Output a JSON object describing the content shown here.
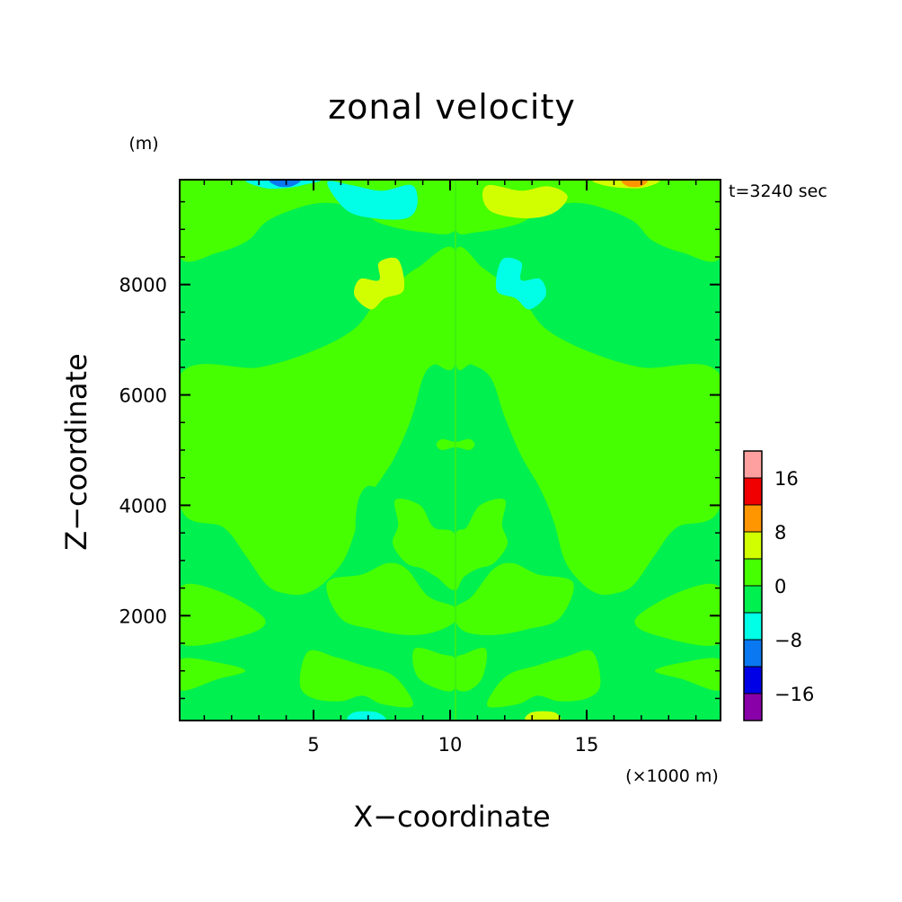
{
  "chart_data": {
    "type": "heatmap",
    "title": "zonal velocity",
    "xlabel": "X−coordinate",
    "ylabel": "Z−coordinate",
    "x_unit": "(×1000 m)",
    "y_unit": "(m)",
    "time_label": "t=3240 sec",
    "xlim": [
      0.1,
      19.9
    ],
    "ylim": [
      100,
      9900
    ],
    "x_ticks": [
      {
        "value": 5,
        "label": "5"
      },
      {
        "value": 10,
        "label": "10"
      },
      {
        "value": 15,
        "label": "15"
      }
    ],
    "y_ticks": [
      {
        "value": 2000,
        "label": "2000"
      },
      {
        "value": 4000,
        "label": "4000"
      },
      {
        "value": 6000,
        "label": "6000"
      },
      {
        "value": 8000,
        "label": "8000"
      }
    ],
    "colorbar": {
      "levels": [
        -20,
        -16,
        -12,
        -8,
        -4,
        0,
        4,
        8,
        12,
        16,
        20
      ],
      "colors": [
        "#8a00a8",
        "#0000e6",
        "#0a78f0",
        "#00ffe6",
        "#00f050",
        "#46ff00",
        "#d2ff00",
        "#ff9600",
        "#f00000",
        "#ffa0a0"
      ],
      "labels": [
        {
          "value": -16,
          "label": "−16"
        },
        {
          "value": -8,
          "label": "−8"
        },
        {
          "value": 0,
          "label": "0"
        },
        {
          "value": 8,
          "label": "8"
        },
        {
          "value": 16,
          "label": "16"
        }
      ]
    },
    "background_value": -2,
    "regions": [
      {
        "v": 2,
        "pts": [
          [
            0.1,
            8500
          ],
          [
            1.5,
            8580
          ],
          [
            2.6,
            8800
          ],
          [
            3.3,
            9150
          ],
          [
            4.5,
            9400
          ],
          [
            5.5,
            9480
          ],
          [
            6.5,
            9380
          ],
          [
            7.5,
            9100
          ],
          [
            9,
            8950
          ],
          [
            10.2,
            9000
          ],
          [
            10.2,
            9900
          ],
          [
            0.1,
            9900
          ]
        ]
      },
      {
        "v": 2,
        "pts": [
          [
            19.9,
            8500
          ],
          [
            18.5,
            8580
          ],
          [
            17.4,
            8800
          ],
          [
            16.7,
            9150
          ],
          [
            15.5,
            9400
          ],
          [
            14.5,
            9480
          ],
          [
            13.5,
            9380
          ],
          [
            12.5,
            9100
          ],
          [
            11,
            8950
          ],
          [
            10.2,
            9000
          ],
          [
            10.2,
            9900
          ],
          [
            19.9,
            9900
          ]
        ]
      },
      {
        "v": 2,
        "pts": [
          [
            0.1,
            6350
          ],
          [
            3,
            6500
          ],
          [
            5,
            6800
          ],
          [
            6.5,
            7200
          ],
          [
            7.3,
            7700
          ],
          [
            8,
            8000
          ],
          [
            8.8,
            8300
          ],
          [
            10.2,
            8600
          ],
          [
            10.2,
            6600
          ],
          [
            9.4,
            6550
          ],
          [
            9,
            6300
          ],
          [
            8.6,
            5600
          ],
          [
            8,
            4900
          ],
          [
            7.5,
            4500
          ],
          [
            6.8,
            4000
          ],
          [
            6.5,
            3500
          ],
          [
            6.1,
            3000
          ],
          [
            5.4,
            2600
          ],
          [
            4.7,
            2400
          ],
          [
            4,
            2400
          ],
          [
            3.3,
            2550
          ],
          [
            2.5,
            3100
          ],
          [
            1.7,
            3600
          ],
          [
            0.1,
            4000
          ]
        ]
      },
      {
        "v": 2,
        "pts": [
          [
            19.9,
            6350
          ],
          [
            17,
            6500
          ],
          [
            15,
            6800
          ],
          [
            13.5,
            7200
          ],
          [
            12.7,
            7700
          ],
          [
            12,
            8000
          ],
          [
            11.2,
            8300
          ],
          [
            10.2,
            8600
          ],
          [
            10.2,
            6600
          ],
          [
            10.8,
            6550
          ],
          [
            11.5,
            6300
          ],
          [
            12,
            5600
          ],
          [
            12.6,
            4900
          ],
          [
            13.3,
            4300
          ],
          [
            13.8,
            3700
          ],
          [
            14.2,
            3000
          ],
          [
            14.8,
            2600
          ],
          [
            15.4,
            2400
          ],
          [
            16,
            2400
          ],
          [
            16.7,
            2550
          ],
          [
            17.5,
            3100
          ],
          [
            18.3,
            3600
          ],
          [
            19.9,
            4000
          ]
        ]
      },
      {
        "v": -2,
        "pts": [
          [
            7,
            4350
          ],
          [
            7.7,
            4150
          ],
          [
            8,
            3700
          ],
          [
            8,
            3300
          ],
          [
            7.2,
            3100
          ],
          [
            6.6,
            3300
          ],
          [
            6.6,
            4000
          ]
        ]
      },
      {
        "v": -2,
        "pts": [
          [
            13,
            4350
          ],
          [
            12.3,
            4150
          ],
          [
            12,
            3700
          ],
          [
            12,
            3300
          ],
          [
            12.8,
            3100
          ],
          [
            13.4,
            3300
          ],
          [
            13.4,
            4000
          ]
        ]
      },
      {
        "v": 2,
        "pts": [
          [
            10.2,
            5150
          ],
          [
            10.7,
            5200
          ],
          [
            10.9,
            5100
          ],
          [
            10.7,
            5000
          ],
          [
            10.2,
            5050
          ],
          [
            9.7,
            5000
          ],
          [
            9.5,
            5100
          ],
          [
            9.7,
            5200
          ]
        ]
      },
      {
        "v": 2,
        "pts": [
          [
            8,
            4100
          ],
          [
            8.9,
            4000
          ],
          [
            9.4,
            3600
          ],
          [
            10.2,
            3450
          ],
          [
            10.2,
            2500
          ],
          [
            9.5,
            2700
          ],
          [
            9,
            2850
          ],
          [
            8.4,
            2950
          ],
          [
            7.9,
            3300
          ],
          [
            8.1,
            3650
          ]
        ]
      },
      {
        "v": 2,
        "pts": [
          [
            12,
            4100
          ],
          [
            11.1,
            4000
          ],
          [
            10.6,
            3600
          ],
          [
            10.2,
            3450
          ],
          [
            10.2,
            2500
          ],
          [
            10.5,
            2700
          ],
          [
            11,
            2850
          ],
          [
            11.6,
            2950
          ],
          [
            12.1,
            3300
          ],
          [
            11.9,
            3650
          ]
        ]
      },
      {
        "v": 2,
        "pts": [
          [
            5.5,
            2600
          ],
          [
            6.8,
            2750
          ],
          [
            7.7,
            2950
          ],
          [
            8.4,
            2850
          ],
          [
            9.2,
            2350
          ],
          [
            10.2,
            2150
          ],
          [
            10.2,
            1900
          ],
          [
            9.4,
            1700
          ],
          [
            8.4,
            1650
          ],
          [
            7.2,
            1750
          ],
          [
            6,
            1950
          ]
        ]
      },
      {
        "v": 2,
        "pts": [
          [
            14.5,
            2600
          ],
          [
            13.2,
            2750
          ],
          [
            12.3,
            2950
          ],
          [
            11.6,
            2850
          ],
          [
            10.8,
            2350
          ],
          [
            10.2,
            2150
          ],
          [
            10.2,
            1900
          ],
          [
            10.6,
            1700
          ],
          [
            11.6,
            1650
          ],
          [
            12.8,
            1750
          ],
          [
            14,
            1950
          ]
        ]
      },
      {
        "v": 2,
        "pts": [
          [
            0.1,
            2500
          ],
          [
            1.5,
            2450
          ],
          [
            3.2,
            1950
          ],
          [
            2.5,
            1650
          ],
          [
            0.1,
            1500
          ]
        ]
      },
      {
        "v": 2,
        "pts": [
          [
            19.9,
            2500
          ],
          [
            18.5,
            2450
          ],
          [
            16.8,
            1950
          ],
          [
            17.5,
            1650
          ],
          [
            19.9,
            1500
          ]
        ]
      },
      {
        "v": 2,
        "pts": [
          [
            0.1,
            1200
          ],
          [
            1.5,
            1150
          ],
          [
            2.5,
            1000
          ],
          [
            1.5,
            850
          ],
          [
            0.1,
            650
          ]
        ]
      },
      {
        "v": 2,
        "pts": [
          [
            19.9,
            1200
          ],
          [
            18.5,
            1150
          ],
          [
            17.5,
            1000
          ],
          [
            18.5,
            850
          ],
          [
            19.9,
            650
          ]
        ]
      },
      {
        "v": 2,
        "pts": [
          [
            4.8,
            1350
          ],
          [
            5.8,
            1250
          ],
          [
            6.8,
            1100
          ],
          [
            7.8,
            950
          ],
          [
            8.4,
            650
          ],
          [
            8.6,
            350
          ],
          [
            7.5,
            400
          ],
          [
            6.8,
            550
          ],
          [
            6,
            450
          ],
          [
            5,
            500
          ],
          [
            4.5,
            750
          ]
        ]
      },
      {
        "v": 2,
        "pts": [
          [
            15.2,
            1350
          ],
          [
            14.2,
            1250
          ],
          [
            13.2,
            1100
          ],
          [
            12.2,
            950
          ],
          [
            11.6,
            650
          ],
          [
            11.4,
            350
          ],
          [
            12.5,
            400
          ],
          [
            13.2,
            550
          ],
          [
            14,
            450
          ],
          [
            15,
            500
          ],
          [
            15.5,
            750
          ]
        ]
      },
      {
        "v": 2,
        "pts": [
          [
            8.7,
            1400
          ],
          [
            9.7,
            1300
          ],
          [
            10.2,
            1200
          ],
          [
            10.2,
            700
          ],
          [
            9.7,
            650
          ],
          [
            8.8,
            900
          ]
        ]
      },
      {
        "v": 2,
        "pts": [
          [
            11.3,
            1400
          ],
          [
            10.5,
            1300
          ],
          [
            10.2,
            1200
          ],
          [
            10.2,
            700
          ],
          [
            10.7,
            650
          ],
          [
            11.2,
            900
          ]
        ]
      },
      {
        "v": -6,
        "pts": [
          [
            5.5,
            9850
          ],
          [
            6.4,
            9800
          ],
          [
            7.5,
            9700
          ],
          [
            8.6,
            9800
          ],
          [
            8.8,
            9450
          ],
          [
            8.4,
            9200
          ],
          [
            7.2,
            9200
          ],
          [
            6.2,
            9350
          ]
        ]
      },
      {
        "v": -6,
        "pts": [
          [
            2.6,
            9900
          ],
          [
            3.2,
            9750
          ],
          [
            4,
            9750
          ],
          [
            4.6,
            9800
          ],
          [
            5.2,
            9900
          ]
        ]
      },
      {
        "v": -10,
        "pts": [
          [
            3.4,
            9900
          ],
          [
            3.7,
            9780
          ],
          [
            4.2,
            9780
          ],
          [
            4.5,
            9900
          ]
        ]
      },
      {
        "v": 6,
        "pts": [
          [
            11.4,
            9800
          ],
          [
            12.6,
            9700
          ],
          [
            13.6,
            9780
          ],
          [
            14.3,
            9600
          ],
          [
            13.8,
            9300
          ],
          [
            12.8,
            9200
          ],
          [
            11.6,
            9300
          ],
          [
            11.2,
            9550
          ]
        ]
      },
      {
        "v": 6,
        "pts": [
          [
            15.3,
            9900
          ],
          [
            15.8,
            9780
          ],
          [
            17,
            9750
          ],
          [
            17.6,
            9900
          ]
        ]
      },
      {
        "v": 10,
        "pts": [
          [
            16.3,
            9900
          ],
          [
            16.5,
            9780
          ],
          [
            17,
            9780
          ],
          [
            17.2,
            9900
          ]
        ]
      },
      {
        "v": 6,
        "pts": [
          [
            6.7,
            8100
          ],
          [
            7.4,
            8080
          ],
          [
            7.4,
            8400
          ],
          [
            8.1,
            8450
          ],
          [
            8.3,
            7900
          ],
          [
            7.6,
            7750
          ],
          [
            7.1,
            7550
          ],
          [
            6.5,
            7800
          ]
        ]
      },
      {
        "v": -6,
        "pts": [
          [
            13.3,
            8100
          ],
          [
            12.6,
            8080
          ],
          [
            12.6,
            8400
          ],
          [
            11.9,
            8450
          ],
          [
            11.7,
            7900
          ],
          [
            12.4,
            7750
          ],
          [
            12.9,
            7550
          ],
          [
            13.5,
            7800
          ]
        ]
      },
      {
        "v": -6,
        "pts": [
          [
            6.3,
            100
          ],
          [
            6.5,
            250
          ],
          [
            7.3,
            250
          ],
          [
            7.6,
            100
          ]
        ]
      },
      {
        "v": 6,
        "pts": [
          [
            12.8,
            100
          ],
          [
            13,
            250
          ],
          [
            13.8,
            250
          ],
          [
            14,
            100
          ]
        ]
      }
    ]
  }
}
